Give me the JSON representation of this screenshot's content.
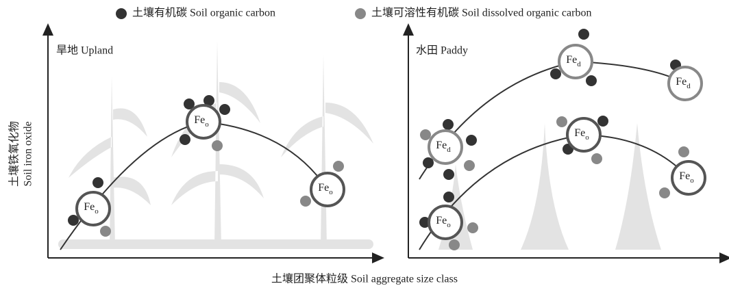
{
  "legend": [
    {
      "label": "土壤有机碳 Soil organic carbon"
    },
    {
      "label": "土壤可溶性有机碳 Soil dissolved organic carbon"
    }
  ],
  "y_axis_label": {
    "zh": "土壤铁氧化物",
    "en": "Soil iron oxide"
  },
  "x_axis_label": "土壤团聚体粒级 Soil aggregate size class",
  "panels": [
    {
      "title": "旱地 Upland",
      "nodes": [
        {
          "label": "Fe",
          "sub": "o"
        },
        {
          "label": "Fe",
          "sub": "o"
        },
        {
          "label": "Fe",
          "sub": "o"
        }
      ]
    },
    {
      "title": "水田 Paddy",
      "nodes": [
        {
          "label": "Fe",
          "sub": "d"
        },
        {
          "label": "Fe",
          "sub": "d"
        },
        {
          "label": "Fe",
          "sub": "d"
        },
        {
          "label": "Fe",
          "sub": "o"
        },
        {
          "label": "Fe",
          "sub": "o"
        },
        {
          "label": "Fe",
          "sub": "o"
        }
      ]
    }
  ]
}
